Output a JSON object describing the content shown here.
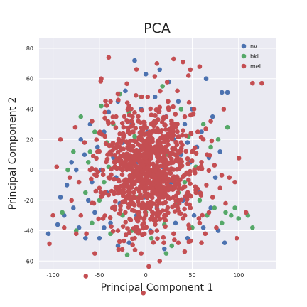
{
  "chart_data": {
    "type": "scatter",
    "title": "PCA",
    "xlabel": "Principal Component 1",
    "ylabel": "Principal Component 2",
    "xlim": [
      -115,
      140
    ],
    "ylim": [
      -65,
      87
    ],
    "xticks": [
      -100,
      -50,
      0,
      50,
      100
    ],
    "yticks": [
      -60,
      -40,
      -20,
      0,
      20,
      40,
      60,
      80
    ],
    "grid": true,
    "legend_position": "top-right",
    "background": "#eaeaf2",
    "series": [
      {
        "name": "nv",
        "color": "#4c72b0",
        "points": [
          [
            -105,
            -42
          ],
          [
            -95,
            -36
          ],
          [
            -88,
            -30
          ],
          [
            -92,
            -18
          ],
          [
            -85,
            -10
          ],
          [
            -80,
            5
          ],
          [
            -78,
            -25
          ],
          [
            -72,
            -38
          ],
          [
            -70,
            20
          ],
          [
            -66,
            10
          ],
          [
            -62,
            -20
          ],
          [
            -60,
            30
          ],
          [
            -58,
            -8
          ],
          [
            -55,
            -28
          ],
          [
            -52,
            15
          ],
          [
            -50,
            -45
          ],
          [
            -48,
            0
          ],
          [
            -45,
            25
          ],
          [
            -42,
            -15
          ],
          [
            -40,
            38
          ],
          [
            -38,
            -35
          ],
          [
            -35,
            8
          ],
          [
            -32,
            -5
          ],
          [
            -30,
            45
          ],
          [
            -28,
            -22
          ],
          [
            -25,
            18
          ],
          [
            -22,
            52
          ],
          [
            -20,
            -10
          ],
          [
            -18,
            -48
          ],
          [
            -15,
            30
          ],
          [
            -12,
            72
          ],
          [
            -10,
            -30
          ],
          [
            -8,
            5
          ],
          [
            -5,
            40
          ],
          [
            -2,
            -18
          ],
          [
            0,
            63
          ],
          [
            2,
            25
          ],
          [
            5,
            -40
          ],
          [
            8,
            12
          ],
          [
            10,
            48
          ],
          [
            12,
            -25
          ],
          [
            15,
            66
          ],
          [
            18,
            2
          ],
          [
            20,
            -52
          ],
          [
            22,
            35
          ],
          [
            25,
            58
          ],
          [
            28,
            -8
          ],
          [
            30,
            20
          ],
          [
            32,
            -35
          ],
          [
            35,
            45
          ],
          [
            38,
            10
          ],
          [
            40,
            -20
          ],
          [
            42,
            30
          ],
          [
            45,
            -45
          ],
          [
            48,
            5
          ],
          [
            50,
            40
          ],
          [
            52,
            -30
          ],
          [
            55,
            15
          ],
          [
            58,
            -15
          ],
          [
            60,
            25
          ],
          [
            62,
            -38
          ],
          [
            65,
            60
          ],
          [
            68,
            8
          ],
          [
            70,
            -25
          ],
          [
            72,
            35
          ],
          [
            75,
            -5
          ],
          [
            78,
            -40
          ],
          [
            80,
            12
          ],
          [
            82,
            51
          ],
          [
            85,
            -48
          ],
          [
            88,
            51
          ],
          [
            -65,
            -45
          ],
          [
            -75,
            0
          ],
          [
            -30,
            -50
          ],
          [
            10,
            -15
          ],
          [
            -15,
            -5
          ],
          [
            -5,
            15
          ],
          [
            25,
            -10
          ],
          [
            45,
            18
          ],
          [
            -45,
            -38
          ]
        ]
      },
      {
        "name": "bkl",
        "color": "#55a868",
        "points": [
          [
            -90,
            -28
          ],
          [
            -84,
            0
          ],
          [
            -78,
            12
          ],
          [
            -75,
            -40
          ],
          [
            -70,
            35
          ],
          [
            -65,
            -15
          ],
          [
            -62,
            5
          ],
          [
            -58,
            -35
          ],
          [
            -55,
            25
          ],
          [
            -50,
            -20
          ],
          [
            -48,
            42
          ],
          [
            -45,
            -8
          ],
          [
            -42,
            18
          ],
          [
            -38,
            -42
          ],
          [
            -35,
            30
          ],
          [
            -30,
            -12
          ],
          [
            -28,
            50
          ],
          [
            -25,
            -30
          ],
          [
            -22,
            8
          ],
          [
            -18,
            38
          ],
          [
            -15,
            -40
          ],
          [
            -12,
            22
          ],
          [
            -8,
            -18
          ],
          [
            -5,
            48
          ],
          [
            0,
            -28
          ],
          [
            3,
            15
          ],
          [
            6,
            -45
          ],
          [
            10,
            32
          ],
          [
            14,
            -12
          ],
          [
            18,
            55
          ],
          [
            20,
            -36
          ],
          [
            24,
            10
          ],
          [
            28,
            -50
          ],
          [
            30,
            28
          ],
          [
            34,
            -22
          ],
          [
            38,
            40
          ],
          [
            42,
            -8
          ],
          [
            46,
            22
          ],
          [
            50,
            -38
          ],
          [
            54,
            2
          ],
          [
            58,
            -20
          ],
          [
            62,
            30
          ],
          [
            66,
            -30
          ],
          [
            70,
            15
          ],
          [
            74,
            -25
          ],
          [
            78,
            20
          ],
          [
            82,
            -35
          ],
          [
            86,
            -28
          ],
          [
            88,
            28
          ],
          [
            92,
            -30
          ],
          [
            96,
            -25
          ],
          [
            100,
            -32
          ],
          [
            110,
            -30
          ],
          [
            115,
            -38
          ],
          [
            -20,
            -56
          ],
          [
            22,
            -55
          ],
          [
            -60,
            12
          ],
          [
            -40,
            2
          ],
          [
            15,
            -5
          ],
          [
            35,
            -15
          ]
        ]
      },
      {
        "name": "mel",
        "color": "#c44e52",
        "points": [
          [
            -100,
            -30
          ],
          [
            -96,
            2
          ],
          [
            -92,
            20
          ],
          [
            -88,
            -38
          ],
          [
            -82,
            -5
          ],
          [
            -80,
            -20
          ],
          [
            -76,
            28
          ],
          [
            -72,
            -8
          ],
          [
            -70,
            -30
          ],
          [
            -66,
            18
          ],
          [
            -64,
            -42
          ],
          [
            -60,
            0
          ],
          [
            -58,
            32
          ],
          [
            -56,
            -22
          ],
          [
            -52,
            12
          ],
          [
            -50,
            -12
          ],
          [
            -48,
            60
          ],
          [
            -46,
            -32
          ],
          [
            -44,
            22
          ],
          [
            -40,
            -5
          ],
          [
            -38,
            45
          ],
          [
            -36,
            -25
          ],
          [
            -34,
            5
          ],
          [
            -32,
            35
          ],
          [
            -30,
            -40
          ],
          [
            -28,
            15
          ],
          [
            -26,
            -15
          ],
          [
            -24,
            28
          ],
          [
            -22,
            -28
          ],
          [
            -20,
            10
          ],
          [
            -18,
            42
          ],
          [
            -16,
            -20
          ],
          [
            -14,
            25
          ],
          [
            -12,
            -45
          ],
          [
            -10,
            0
          ],
          [
            -8,
            32
          ],
          [
            -6,
            -12
          ],
          [
            -4,
            20
          ],
          [
            -2,
            -35
          ],
          [
            0,
            8
          ],
          [
            2,
            48
          ],
          [
            4,
            -22
          ],
          [
            6,
            30
          ],
          [
            8,
            -8
          ],
          [
            10,
            15
          ],
          [
            12,
            -40
          ],
          [
            14,
            38
          ],
          [
            16,
            -18
          ],
          [
            18,
            22
          ],
          [
            20,
            -30
          ],
          [
            22,
            5
          ],
          [
            24,
            45
          ],
          [
            26,
            -12
          ],
          [
            28,
            28
          ],
          [
            30,
            -42
          ],
          [
            32,
            10
          ],
          [
            34,
            52
          ],
          [
            36,
            -22
          ],
          [
            38,
            18
          ],
          [
            40,
            -32
          ],
          [
            42,
            35
          ],
          [
            44,
            -2
          ],
          [
            46,
            62
          ],
          [
            48,
            -25
          ],
          [
            50,
            12
          ],
          [
            52,
            40
          ],
          [
            54,
            -15
          ],
          [
            56,
            25
          ],
          [
            58,
            -35
          ],
          [
            60,
            5
          ],
          [
            62,
            20
          ],
          [
            64,
            -42
          ],
          [
            66,
            10
          ],
          [
            68,
            -28
          ],
          [
            70,
            32
          ],
          [
            72,
            -18
          ],
          [
            74,
            3
          ],
          [
            76,
            -38
          ],
          [
            80,
            -12
          ],
          [
            84,
            40
          ],
          [
            86,
            -22
          ],
          [
            90,
            -5
          ],
          [
            96,
            -8
          ],
          [
            98,
            -45
          ],
          [
            108,
            -28
          ],
          [
            115,
            57
          ],
          [
            125,
            57
          ],
          [
            -55,
            -55
          ],
          [
            -5,
            -55
          ],
          [
            15,
            -60
          ],
          [
            -40,
            74
          ],
          [
            12,
            70
          ],
          [
            30,
            73
          ],
          [
            40,
            71
          ],
          [
            48,
            66
          ],
          [
            58,
            68
          ],
          [
            -30,
            50
          ],
          [
            35,
            -48
          ],
          [
            -75,
            -42
          ],
          [
            60,
            -48
          ]
        ]
      }
    ],
    "mel_dense_cluster": {
      "center": [
        3,
        0
      ],
      "spread": [
        25,
        20
      ],
      "count": 900
    }
  }
}
